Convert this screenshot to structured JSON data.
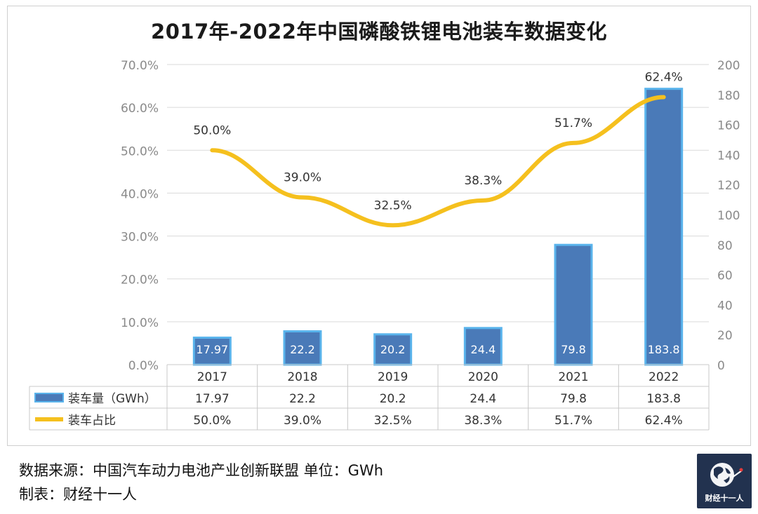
{
  "chart_data": {
    "type": "bar",
    "title": "2017年-2022年中国磷酸铁锂电池装车数据变化",
    "categories": [
      "2017",
      "2018",
      "2019",
      "2020",
      "2021",
      "2022"
    ],
    "series": [
      {
        "name": "装车量（GWh）",
        "kind": "bar",
        "axis": "right",
        "color": "#4a7ab8",
        "border": "#5ab4ec",
        "values": [
          17.97,
          22.2,
          20.2,
          24.4,
          79.8,
          183.8
        ],
        "labels": [
          "17.97",
          "22.2",
          "20.2",
          "24.4",
          "79.8",
          "183.8"
        ]
      },
      {
        "name": "装车占比",
        "kind": "line",
        "axis": "left",
        "color": "#f5c01e",
        "values": [
          50.0,
          39.0,
          32.5,
          38.3,
          51.7,
          62.4
        ],
        "labels": [
          "50.0%",
          "39.0%",
          "32.5%",
          "38.3%",
          "51.7%",
          "62.4%"
        ]
      }
    ],
    "y_left": {
      "min": 0,
      "max": 70,
      "step": 10,
      "tick_labels": [
        "0.0%",
        "10.0%",
        "20.0%",
        "30.0%",
        "40.0%",
        "50.0%",
        "60.0%",
        "70.0%"
      ]
    },
    "y_right": {
      "min": 0,
      "max": 200,
      "step": 20,
      "tick_labels": [
        "0",
        "20",
        "40",
        "60",
        "80",
        "100",
        "120",
        "140",
        "160",
        "180",
        "200"
      ]
    },
    "grid": true,
    "legend": "data-table"
  },
  "footer": {
    "source": "数据来源：中国汽车动力电池产业创新联盟 单位：GWh",
    "maker": "制表：财经十一人"
  },
  "logo": {
    "text": "财经十一人"
  }
}
